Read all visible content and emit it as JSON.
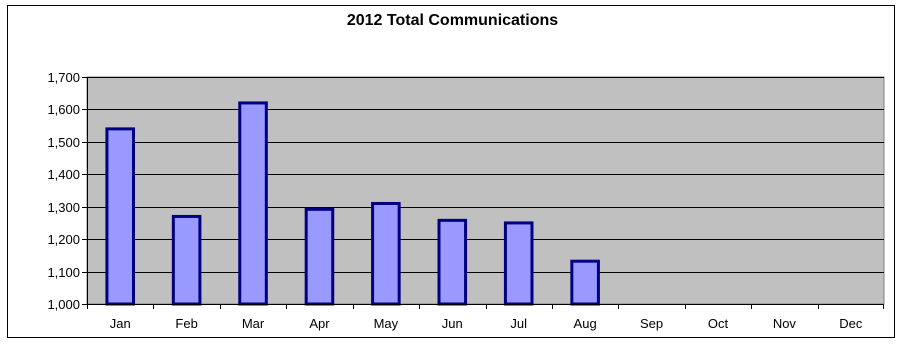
{
  "chart_data": {
    "type": "bar",
    "title": "2012 Total Communications",
    "xlabel": "",
    "ylabel": "",
    "categories": [
      "Jan",
      "Feb",
      "Mar",
      "Apr",
      "May",
      "Jun",
      "Jul",
      "Aug",
      "Sep",
      "Oct",
      "Nov",
      "Dec"
    ],
    "values": [
      1540,
      1270,
      1620,
      1292,
      1310,
      1258,
      1250,
      1132,
      null,
      null,
      null,
      null
    ],
    "ylim": [
      1000,
      1700
    ],
    "yticks": [
      1000,
      1100,
      1200,
      1300,
      1400,
      1500,
      1600,
      1700
    ],
    "ytick_labels": [
      "1,000",
      "1,100",
      "1,200",
      "1,300",
      "1,400",
      "1,500",
      "1,600",
      "1,700"
    ],
    "grid": true,
    "legend": "none",
    "colors": {
      "plot_background": "#c0c0c0",
      "bar_fill": "#9999ff",
      "bar_stroke": "#000080",
      "gridline": "#000000"
    }
  }
}
